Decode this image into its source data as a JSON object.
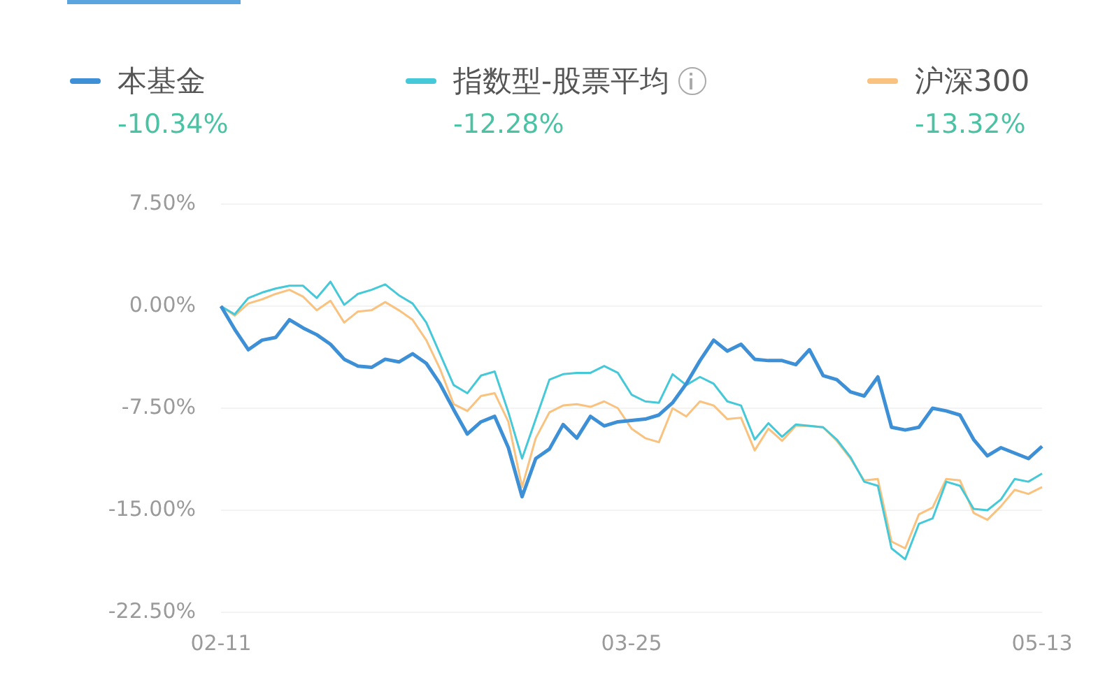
{
  "chart_data": {
    "type": "line",
    "categories": [
      "02-11",
      null,
      null,
      null,
      null,
      null,
      null,
      null,
      null,
      null,
      null,
      null,
      null,
      null,
      null,
      null,
      null,
      null,
      null,
      null,
      null,
      null,
      null,
      null,
      null,
      null,
      null,
      null,
      null,
      null,
      "03-25",
      null,
      null,
      null,
      null,
      null,
      null,
      null,
      null,
      null,
      null,
      null,
      null,
      null,
      null,
      null,
      null,
      null,
      null,
      null,
      null,
      null,
      null,
      null,
      null,
      null,
      null,
      null,
      null,
      null,
      "05-13"
    ],
    "series": [
      {
        "name": "本基金",
        "color": "#3d8fd6",
        "values": [
          0.0,
          -1.7,
          -3.2,
          -2.5,
          -2.3,
          -1.0,
          -1.6,
          -2.1,
          -2.8,
          -3.9,
          -4.4,
          -4.5,
          -3.9,
          -4.1,
          -3.5,
          -4.2,
          -5.7,
          -7.6,
          -9.4,
          -8.5,
          -8.1,
          -10.4,
          -14.0,
          -11.2,
          -10.5,
          -8.7,
          -9.7,
          -8.1,
          -8.8,
          -8.5,
          -8.4,
          -8.3,
          -8.0,
          -7.1,
          -5.7,
          -4.0,
          -2.5,
          -3.3,
          -2.8,
          -3.9,
          -4.0,
          -4.0,
          -4.3,
          -3.2,
          -5.1,
          -5.4,
          -6.3,
          -6.6,
          -5.2,
          -8.9,
          -9.1,
          -8.9,
          -7.5,
          -7.7,
          -8.0,
          -9.8,
          -11.0,
          -10.4,
          -10.8,
          -11.2,
          -10.3
        ]
      },
      {
        "name": "指数型-股票平均",
        "color": "#45c8d8",
        "values": [
          0.0,
          -0.6,
          0.6,
          1.0,
          1.3,
          1.5,
          1.5,
          0.6,
          1.8,
          0.1,
          0.9,
          1.2,
          1.6,
          0.8,
          0.2,
          -1.2,
          -3.5,
          -5.8,
          -6.4,
          -5.1,
          -4.8,
          -7.8,
          -11.2,
          -8.3,
          -5.4,
          -5.0,
          -4.9,
          -4.9,
          -4.4,
          -4.9,
          -6.5,
          -7.0,
          -7.1,
          -5.0,
          -5.8,
          -5.2,
          -5.7,
          -7.0,
          -7.3,
          -9.8,
          -8.6,
          -9.6,
          -8.7,
          -8.8,
          -8.9,
          -9.8,
          -11.1,
          -12.9,
          -13.2,
          -17.8,
          -18.6,
          -16.0,
          -15.6,
          -12.9,
          -13.2,
          -14.9,
          -15.0,
          -14.2,
          -12.7,
          -12.9,
          -12.3
        ]
      },
      {
        "name": "沪深300",
        "color": "#f9c27f",
        "values": [
          0.0,
          -0.7,
          0.2,
          0.5,
          0.9,
          1.2,
          0.7,
          -0.3,
          0.4,
          -1.2,
          -0.4,
          -0.3,
          0.3,
          -0.3,
          -1.0,
          -2.5,
          -4.6,
          -7.2,
          -7.7,
          -6.6,
          -6.4,
          -8.5,
          -13.3,
          -9.7,
          -7.8,
          -7.3,
          -7.2,
          -7.4,
          -7.0,
          -7.5,
          -9.0,
          -9.7,
          -10.0,
          -7.5,
          -8.1,
          -7.0,
          -7.3,
          -8.3,
          -8.2,
          -10.6,
          -9.0,
          -9.9,
          -8.8,
          -8.8,
          -8.9,
          -9.9,
          -11.2,
          -12.8,
          -12.7,
          -17.3,
          -17.8,
          -15.3,
          -14.8,
          -12.7,
          -12.8,
          -15.2,
          -15.7,
          -14.7,
          -13.5,
          -13.8,
          -13.3
        ]
      }
    ],
    "ylim": [
      -22.5,
      7.5
    ],
    "yticks": [
      {
        "value": 7.5,
        "label": "7.50%"
      },
      {
        "value": 0,
        "label": "0.00%"
      },
      {
        "value": -7.5,
        "label": "-7.50%"
      },
      {
        "value": -15,
        "label": "-15.00%"
      },
      {
        "value": -22.5,
        "label": "-22.50%"
      }
    ],
    "grid": "y",
    "legend": "top",
    "marker": "none",
    "line_style": "solid",
    "annotations": [
      "-10.34%",
      "-12.28%",
      "-13.32%"
    ]
  }
}
